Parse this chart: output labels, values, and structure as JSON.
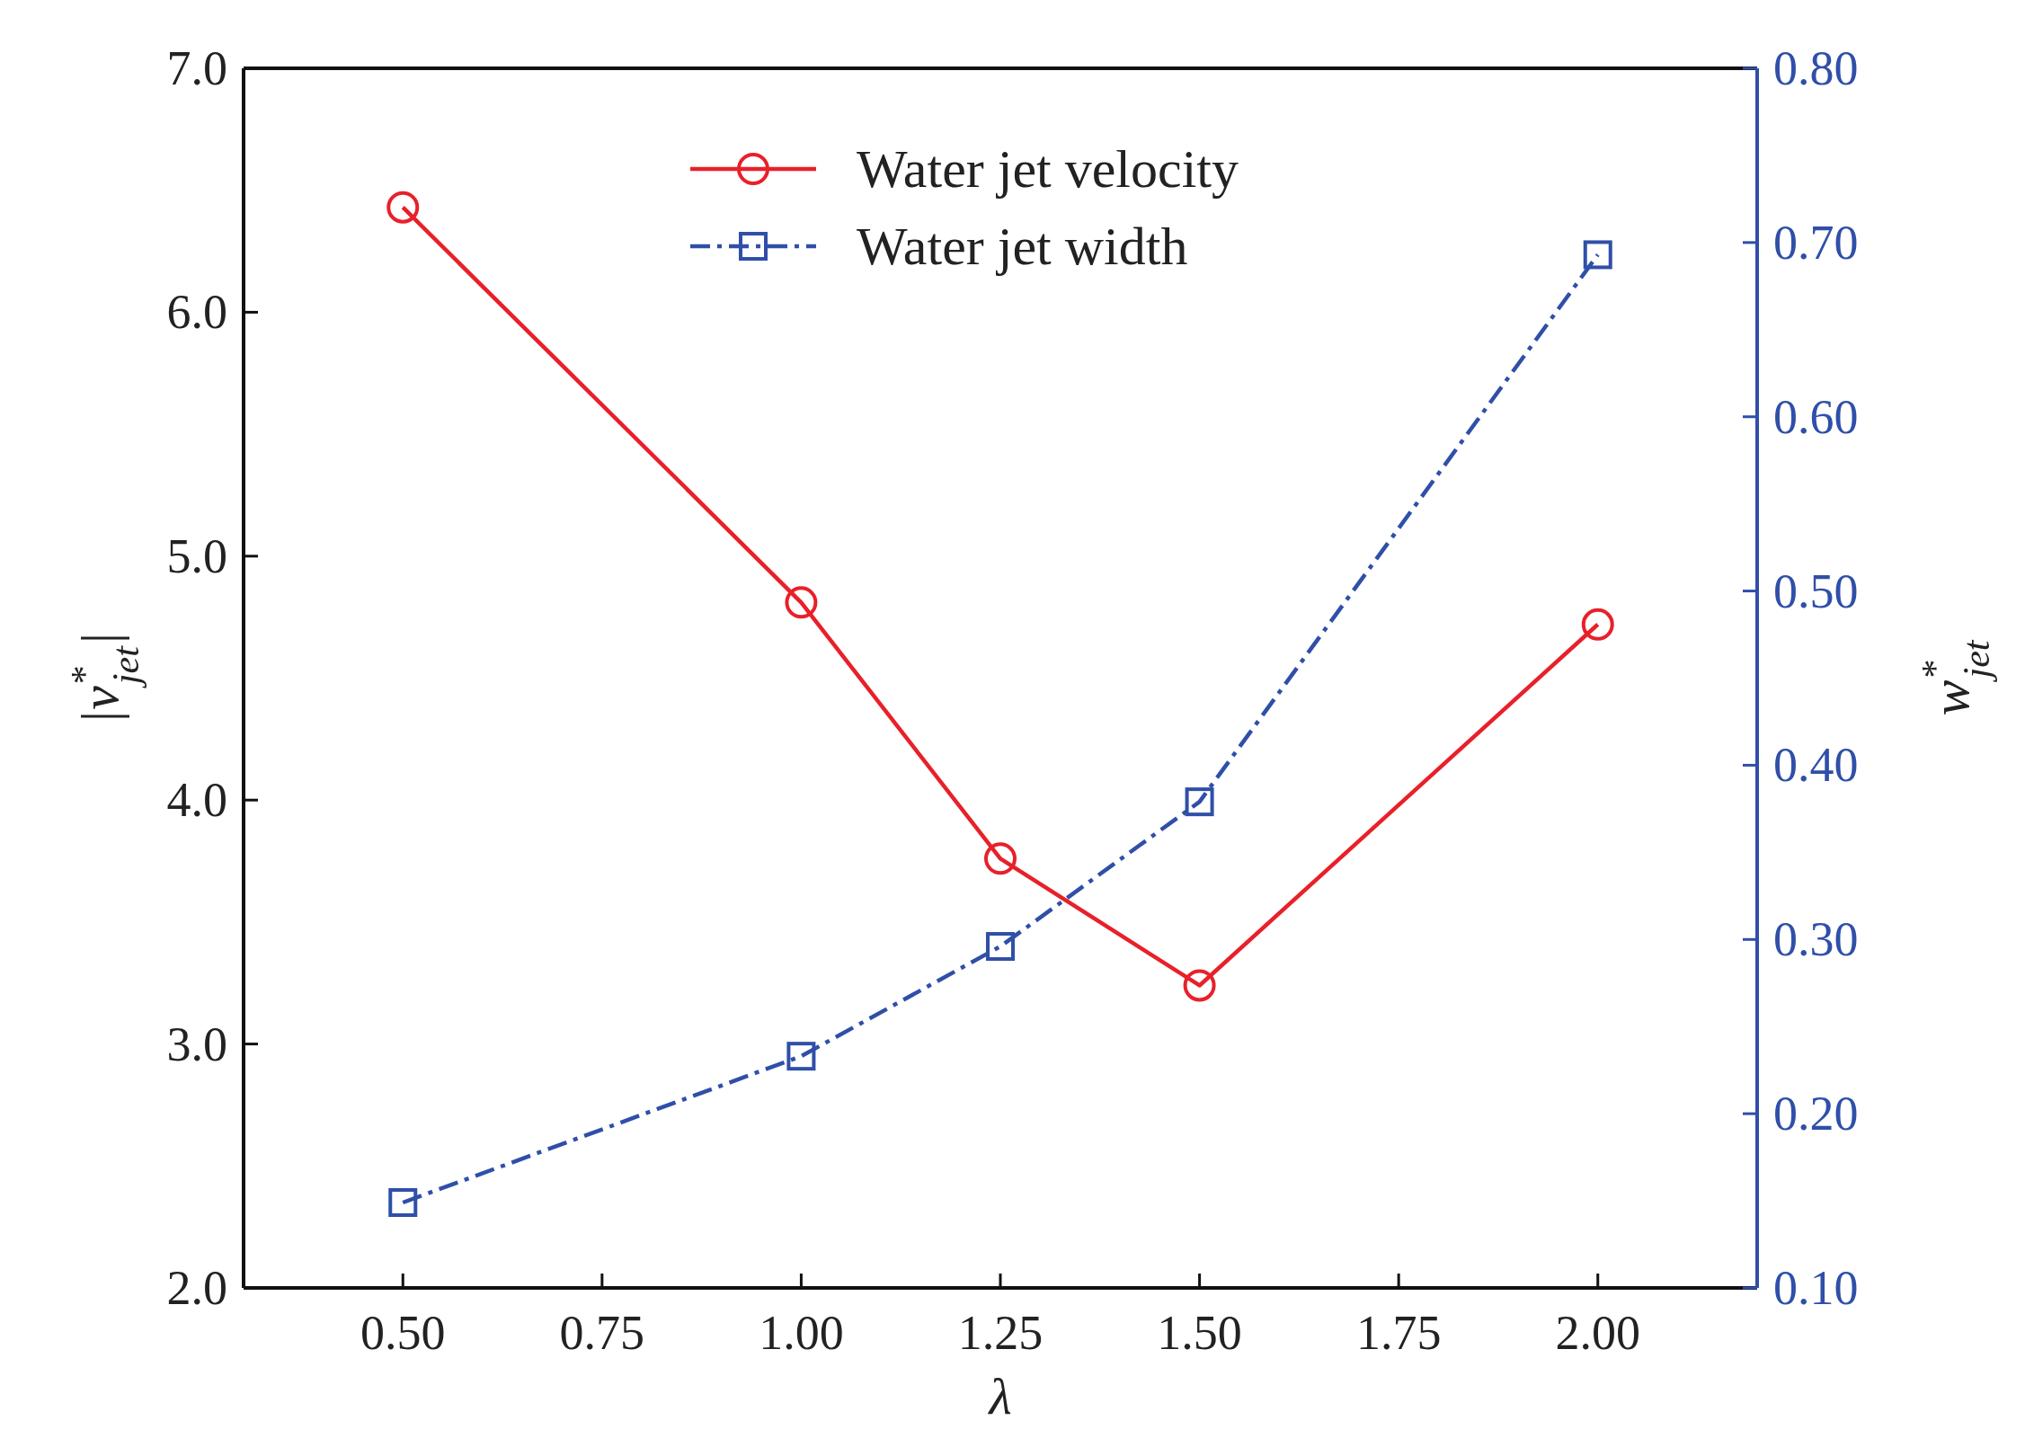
{
  "chart_data": {
    "type": "line",
    "xlabel": "λ",
    "ylabel": "|v$^{*}$$_{jet}$|",
    "y2label": "w$^{*}$$_{jet}$",
    "x": [
      0.5,
      1.0,
      1.25,
      1.5,
      2.0
    ],
    "xlim": [
      0.3,
      2.2
    ],
    "xticks": [
      {
        "value": 0.5,
        "label": "0.50"
      },
      {
        "value": 0.75,
        "label": "0.75"
      },
      {
        "value": 1.0,
        "label": "1.00"
      },
      {
        "value": 1.25,
        "label": "1.25"
      },
      {
        "value": 1.5,
        "label": "1.50"
      },
      {
        "value": 1.75,
        "label": "1.75"
      },
      {
        "value": 2.0,
        "label": "2.00"
      }
    ],
    "ylim": [
      2.0,
      7.0
    ],
    "yticks": [
      {
        "value": 2,
        "label": "2.0"
      },
      {
        "value": 3,
        "label": "3.0"
      },
      {
        "value": 4,
        "label": "4.0"
      },
      {
        "value": 5,
        "label": "5.0"
      },
      {
        "value": 6,
        "label": "6.0"
      },
      {
        "value": 7,
        "label": "7.0"
      }
    ],
    "y2lim": [
      0.1,
      0.8
    ],
    "y2ticks": [
      {
        "value": 0.1,
        "label": "0.10"
      },
      {
        "value": 0.2,
        "label": "0.20"
      },
      {
        "value": 0.3,
        "label": "0.30"
      },
      {
        "value": 0.4,
        "label": "0.40"
      },
      {
        "value": 0.5,
        "label": "0.50"
      },
      {
        "value": 0.6,
        "label": "0.60"
      },
      {
        "value": 0.7,
        "label": "0.70"
      },
      {
        "value": 0.8,
        "label": "0.80"
      }
    ],
    "legend": "top",
    "grid": false,
    "series": [
      {
        "name": "Water jet velocity",
        "color": "#e8202a",
        "values": [
          6.43,
          4.81,
          3.76,
          3.24,
          4.72
        ],
        "marker": "circle",
        "line_style": "solid"
      },
      {
        "name": "Water jet width",
        "color": "#2f4fa8",
        "values": [
          0.149,
          0.233,
          0.296,
          0.379,
          0.693
        ],
        "marker": "square",
        "line_style": "dashed",
        "axis": "y2"
      }
    ]
  }
}
